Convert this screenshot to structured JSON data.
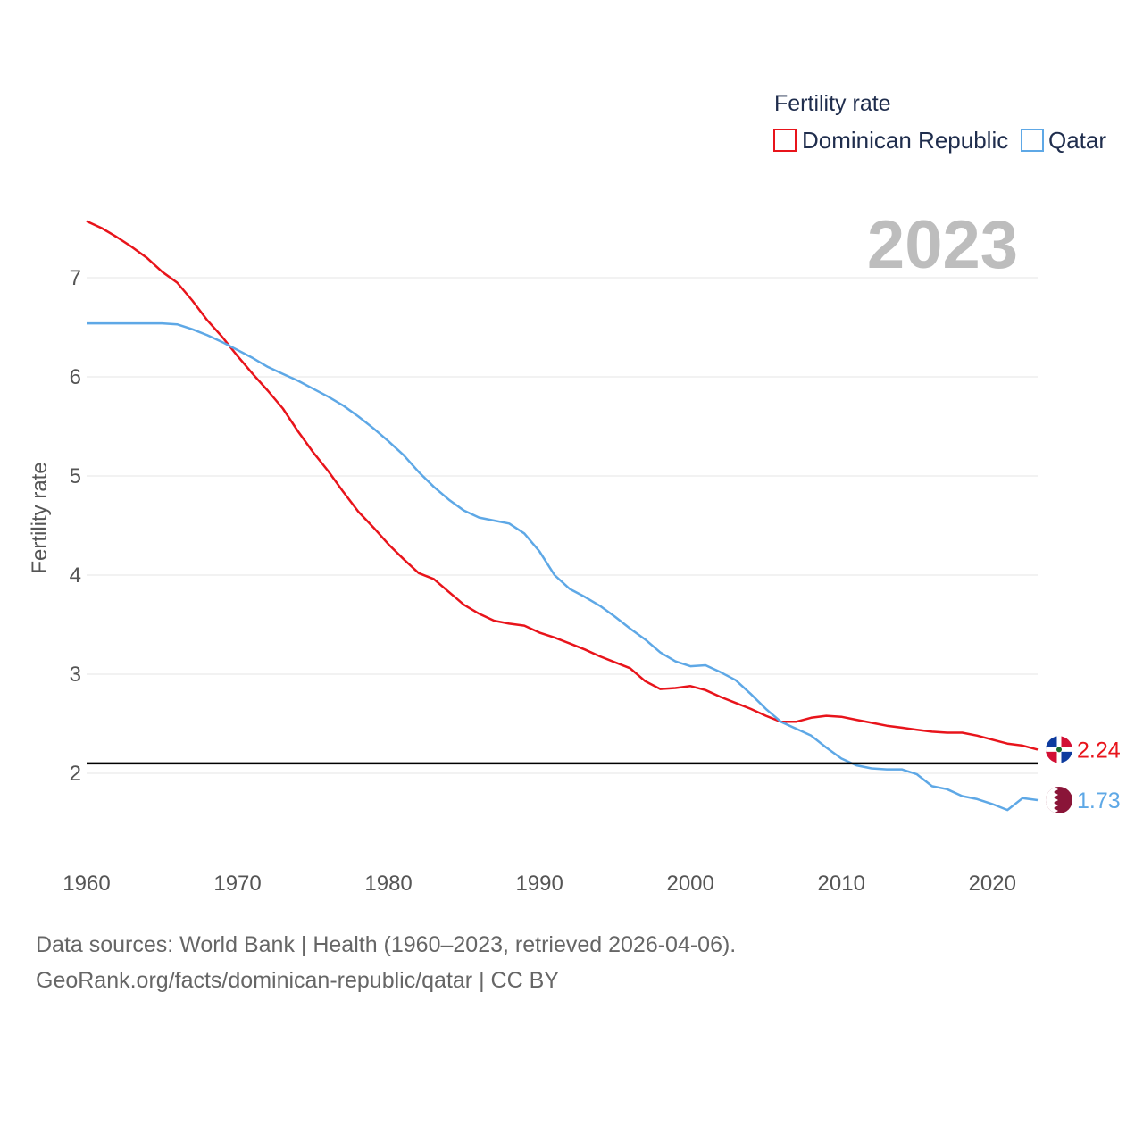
{
  "chart_data": {
    "type": "line",
    "title": "",
    "xlabel": "",
    "ylabel": "Fertility rate",
    "xlim": [
      1960,
      2023
    ],
    "ylim": [
      1.2,
      7.6
    ],
    "xticks": [
      1960,
      1970,
      1980,
      1990,
      2000,
      2010,
      2020
    ],
    "yticks": [
      2,
      3,
      4,
      5,
      6,
      7
    ],
    "grid": true,
    "legend_title": "Fertility rate",
    "legend_position": "top-right",
    "current_year": "2023",
    "reference_line": {
      "y": 2.1,
      "color": "#000000"
    },
    "x": [
      1960,
      1961,
      1962,
      1963,
      1964,
      1965,
      1966,
      1967,
      1968,
      1969,
      1970,
      1971,
      1972,
      1973,
      1974,
      1975,
      1976,
      1977,
      1978,
      1979,
      1980,
      1981,
      1982,
      1983,
      1984,
      1985,
      1986,
      1987,
      1988,
      1989,
      1990,
      1991,
      1992,
      1993,
      1994,
      1995,
      1996,
      1997,
      1998,
      1999,
      2000,
      2001,
      2002,
      2003,
      2004,
      2005,
      2006,
      2007,
      2008,
      2009,
      2010,
      2011,
      2012,
      2013,
      2014,
      2015,
      2016,
      2017,
      2018,
      2019,
      2020,
      2021,
      2022,
      2023
    ],
    "series": [
      {
        "name": "Dominican Republic",
        "color": "#e8141b",
        "end_label": "2.24",
        "values": [
          7.57,
          7.5,
          7.41,
          7.31,
          7.2,
          7.06,
          6.95,
          6.77,
          6.57,
          6.4,
          6.21,
          6.03,
          5.86,
          5.68,
          5.45,
          5.24,
          5.05,
          4.84,
          4.64,
          4.48,
          4.31,
          4.16,
          4.02,
          3.96,
          3.83,
          3.7,
          3.61,
          3.54,
          3.51,
          3.49,
          3.42,
          3.37,
          3.31,
          3.25,
          3.18,
          3.12,
          3.06,
          2.93,
          2.85,
          2.86,
          2.88,
          2.84,
          2.77,
          2.71,
          2.65,
          2.58,
          2.52,
          2.52,
          2.56,
          2.58,
          2.57,
          2.54,
          2.51,
          2.48,
          2.46,
          2.44,
          2.42,
          2.41,
          2.41,
          2.38,
          2.34,
          2.3,
          2.28,
          2.24
        ]
      },
      {
        "name": "Qatar",
        "color": "#5ea8e6",
        "end_label": "1.73",
        "values": [
          6.54,
          6.54,
          6.54,
          6.54,
          6.54,
          6.54,
          6.53,
          6.48,
          6.42,
          6.35,
          6.27,
          6.19,
          6.1,
          6.03,
          5.96,
          5.88,
          5.8,
          5.71,
          5.6,
          5.48,
          5.35,
          5.21,
          5.04,
          4.89,
          4.76,
          4.65,
          4.58,
          4.55,
          4.52,
          4.42,
          4.24,
          4.0,
          3.86,
          3.78,
          3.69,
          3.58,
          3.46,
          3.35,
          3.22,
          3.13,
          3.08,
          3.09,
          3.02,
          2.94,
          2.8,
          2.65,
          2.52,
          2.45,
          2.38,
          2.26,
          2.15,
          2.08,
          2.05,
          2.04,
          2.04,
          1.99,
          1.87,
          1.84,
          1.77,
          1.74,
          1.69,
          1.63,
          1.75,
          1.73
        ]
      }
    ]
  },
  "source": {
    "line1": "Data sources: World Bank | Health (1960–2023, retrieved 2026-04-06).",
    "line2": "GeoRank.org/facts/dominican-republic/qatar | CC BY"
  }
}
